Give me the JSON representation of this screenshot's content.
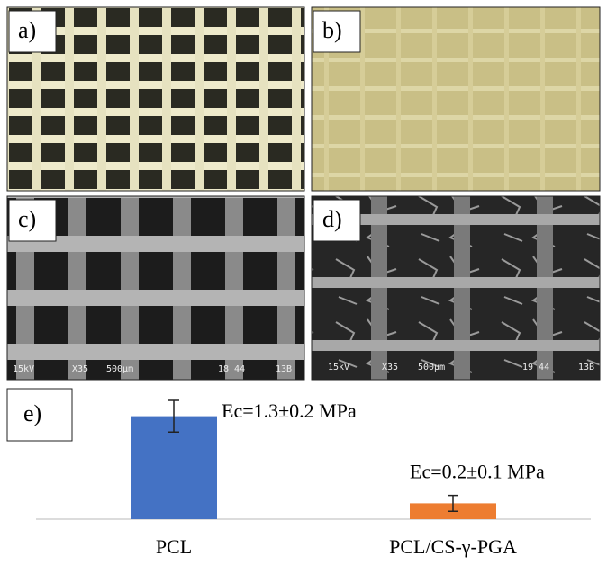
{
  "panels": [
    {
      "label": "a)"
    },
    {
      "label": "b)"
    },
    {
      "label": "c)",
      "caption": [
        "15kV",
        "X35",
        "500μm",
        "18 44",
        "13B"
      ]
    },
    {
      "label": "d)",
      "caption": [
        "15kV",
        "X35",
        "500μm",
        "19 44",
        "13B"
      ]
    }
  ],
  "chart_data": {
    "type": "bar",
    "label": "e)",
    "categories": [
      "PCL",
      "PCL/CS-γ-PGA"
    ],
    "values": [
      1.3,
      0.2
    ],
    "errors": [
      0.2,
      0.1
    ],
    "value_labels": [
      "Ec=1.3±0.2 MPa",
      "Ec=0.2±0.1 MPa"
    ],
    "colors": [
      "#4472c4",
      "#ed7d31"
    ]
  }
}
